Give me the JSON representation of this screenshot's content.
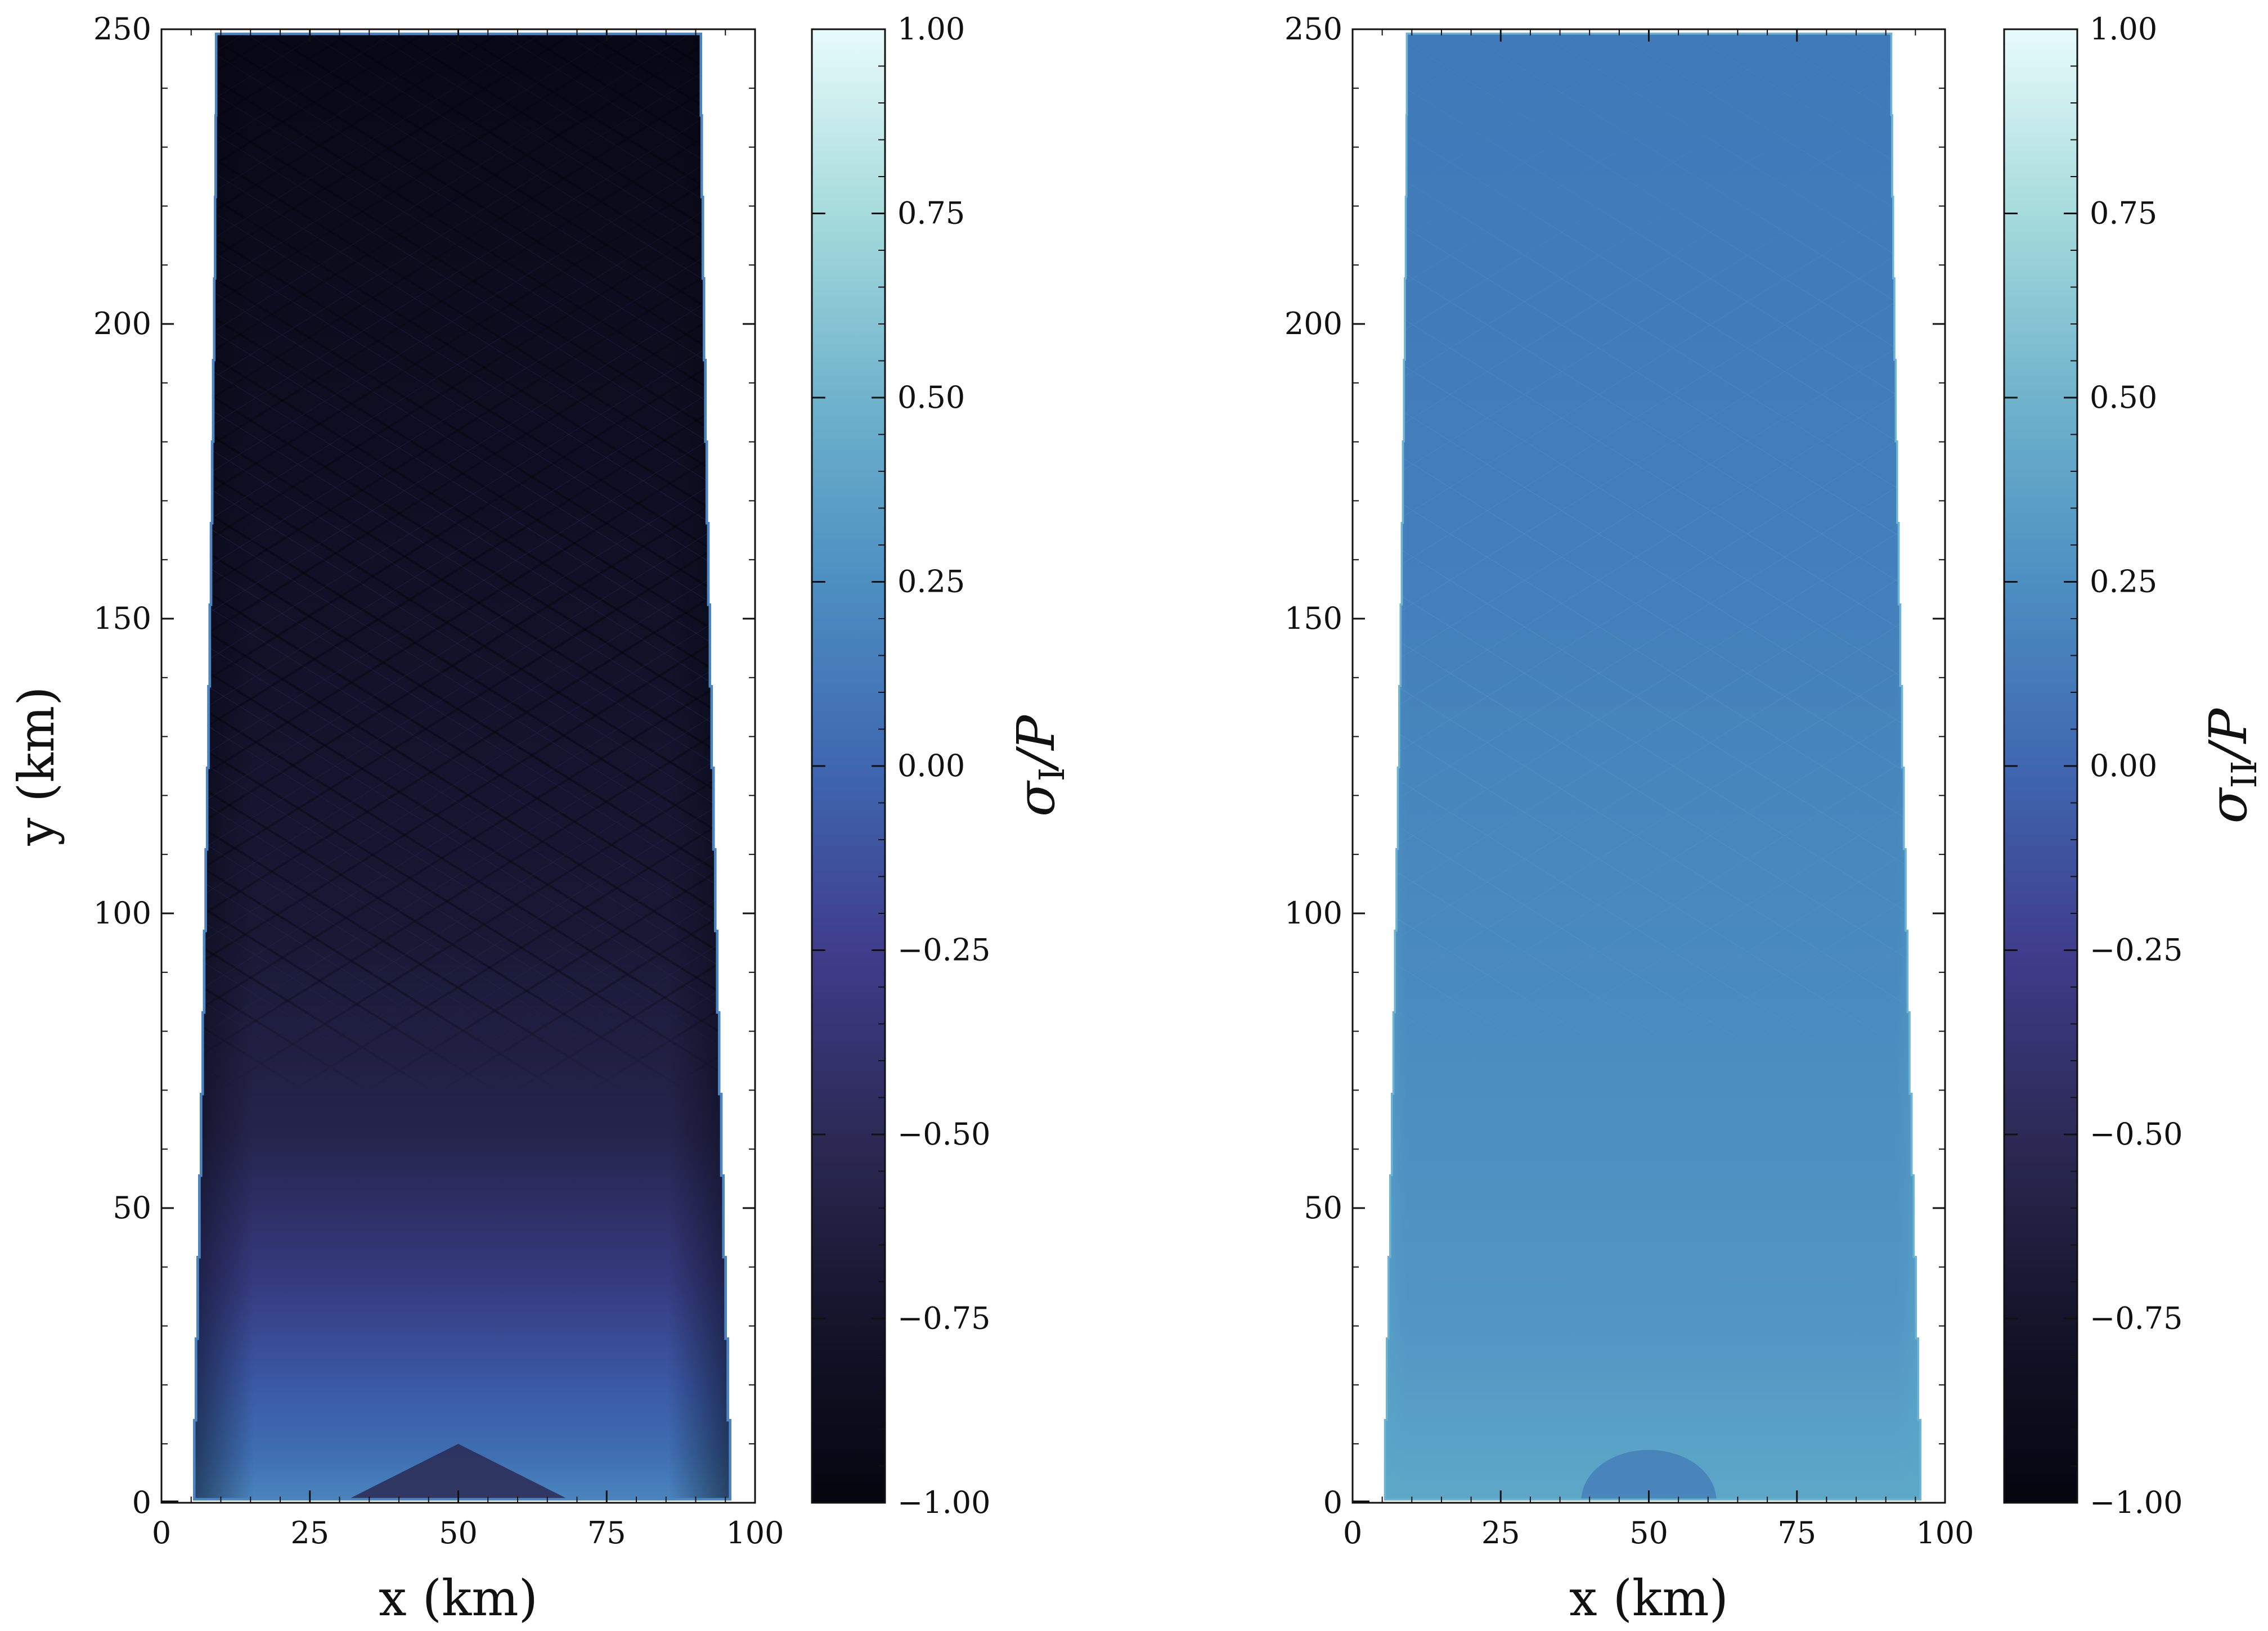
{
  "chart_data": [
    {
      "type": "heatmap",
      "xlabel": "x (km)",
      "ylabel": "y (km)",
      "xlim": [
        0,
        100
      ],
      "ylim": [
        0,
        250
      ],
      "x_ticks": [
        "0",
        "25",
        "50",
        "75",
        "100"
      ],
      "x_tick_values": [
        0,
        25,
        50,
        75,
        100
      ],
      "y_ticks": [
        "0",
        "50",
        "100",
        "150",
        "200",
        "250"
      ],
      "y_tick_values": [
        0,
        50,
        100,
        150,
        200,
        250
      ],
      "colorbar": {
        "label_main": "σ",
        "label_sub": "I",
        "label_tail": "/P",
        "range": [
          -1.0,
          1.0
        ],
        "ticks": [
          "1.00",
          "0.75",
          "0.50",
          "0.25",
          "0.00",
          "−0.25",
          "−0.50",
          "−0.75",
          "−1.00"
        ],
        "tick_values": [
          1.0,
          0.75,
          0.5,
          0.25,
          0.0,
          -0.25,
          -0.5,
          -0.75,
          -1.0
        ]
      },
      "field_summary": {
        "domain_x_bottom": [
          5,
          96
        ],
        "domain_x_top": [
          9,
          91
        ],
        "value_top": -0.98,
        "value_mid": -0.85,
        "value_lower": -0.35,
        "value_bottom_edges": 0.05,
        "value_bottom_center": -0.6
      }
    },
    {
      "type": "heatmap",
      "xlabel": "x (km)",
      "ylabel": "",
      "xlim": [
        0,
        100
      ],
      "ylim": [
        0,
        250
      ],
      "x_ticks": [
        "0",
        "25",
        "50",
        "75",
        "100"
      ],
      "x_tick_values": [
        0,
        25,
        50,
        75,
        100
      ],
      "y_ticks": [
        "0",
        "50",
        "100",
        "150",
        "200",
        "250"
      ],
      "y_tick_values": [
        0,
        50,
        100,
        150,
        200,
        250
      ],
      "colorbar": {
        "label_main": "σ",
        "label_sub": "II",
        "label_tail": "/P",
        "range": [
          -1.0,
          1.0
        ],
        "ticks": [
          "1.00",
          "0.75",
          "0.50",
          "0.25",
          "0.00",
          "−0.25",
          "−0.50",
          "−0.75",
          "−1.00"
        ],
        "tick_values": [
          1.0,
          0.75,
          0.5,
          0.25,
          0.0,
          -0.25,
          -0.5,
          -0.75,
          -1.0
        ]
      },
      "field_summary": {
        "domain_x_bottom": [
          5,
          96
        ],
        "domain_x_top": [
          9,
          91
        ],
        "value_top": 0.02,
        "value_mid": 0.08,
        "value_bottom": 0.16
      }
    }
  ],
  "colors": {
    "cmap_stops": [
      "#05050f",
      "#14142b",
      "#2c2a55",
      "#3f3d8c",
      "#3f67b0",
      "#4d8fc1",
      "#6fb3cc",
      "#a6dbdc",
      "#e8fbfb"
    ]
  }
}
